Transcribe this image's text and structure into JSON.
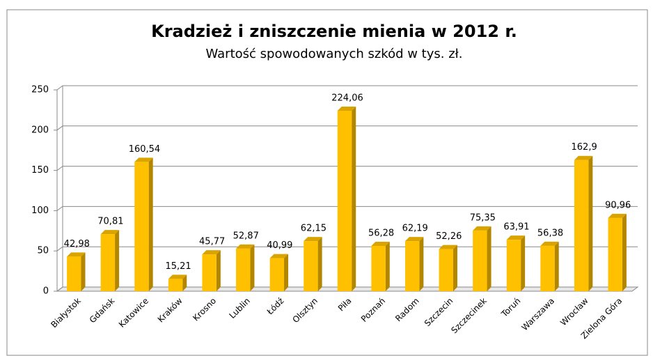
{
  "chart_data": {
    "type": "bar3d",
    "title": "Kradzież i zniszczenie mienia w 2012 r.",
    "subtitle": "Wartość spowodowanych szkód w tys. zł.",
    "categories": [
      "Białystok",
      "Gdańsk",
      "Katowice",
      "Kraków",
      "Krosno",
      "Lublin",
      "Łódź",
      "Olsztyn",
      "Piła",
      "Poznań",
      "Radom",
      "Szczecin",
      "Szczecinek",
      "Toruń",
      "Warszawa",
      "Wrocław",
      "Zielona Góra"
    ],
    "values": [
      42.98,
      70.81,
      160.54,
      15.21,
      45.77,
      52.87,
      40.99,
      62.15,
      224.06,
      56.28,
      62.19,
      52.26,
      75.35,
      63.91,
      56.38,
      162.9,
      90.96
    ],
    "value_labels": [
      "42,98",
      "70,81",
      "160,54",
      "15,21",
      "45,77",
      "52,87",
      "40,99",
      "62,15",
      "224,06",
      "56,28",
      "62,19",
      "52,26",
      "75,35",
      "63,91",
      "56,38",
      "162,9",
      "90,96"
    ],
    "color": "#ffc000",
    "ylim": [
      0,
      250
    ],
    "yticks": [
      0,
      50,
      100,
      150,
      200,
      250
    ],
    "grid": true
  }
}
